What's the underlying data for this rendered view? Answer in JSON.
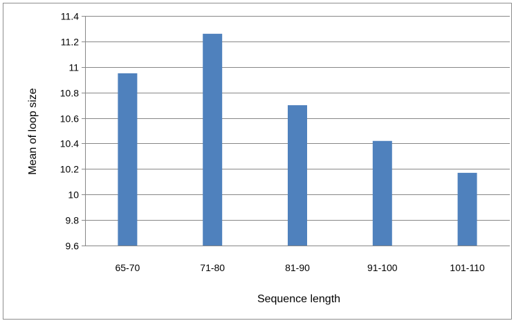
{
  "chart_data": {
    "type": "bar",
    "categories": [
      "65-70",
      "71-80",
      "81-90",
      "91-100",
      "101-110"
    ],
    "values": [
      10.95,
      11.26,
      10.7,
      10.42,
      10.17
    ],
    "title": "",
    "xlabel": "Sequence length",
    "ylabel": "Mean of loop size",
    "ylim": [
      9.6,
      11.4
    ],
    "yticks": [
      9.6,
      9.8,
      10,
      10.2,
      10.4,
      10.6,
      10.8,
      11,
      11.2,
      11.4
    ],
    "ytick_labels": [
      "9.6",
      "9.8",
      "10",
      "10.2",
      "10.4",
      "10.6",
      "10.8",
      "11",
      "11.2",
      "11.4"
    ],
    "grid": true,
    "legend": "none",
    "bar_color": "#4f81bd",
    "gridline_color": "#868686"
  }
}
